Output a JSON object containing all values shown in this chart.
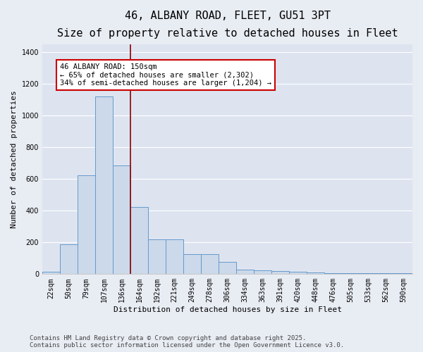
{
  "title1": "46, ALBANY ROAD, FLEET, GU51 3PT",
  "title2": "Size of property relative to detached houses in Fleet",
  "xlabel": "Distribution of detached houses by size in Fleet",
  "ylabel": "Number of detached properties",
  "categories": [
    "22sqm",
    "50sqm",
    "79sqm",
    "107sqm",
    "136sqm",
    "164sqm",
    "192sqm",
    "221sqm",
    "249sqm",
    "278sqm",
    "306sqm",
    "334sqm",
    "363sqm",
    "391sqm",
    "420sqm",
    "448sqm",
    "476sqm",
    "505sqm",
    "533sqm",
    "562sqm",
    "590sqm"
  ],
  "values": [
    15,
    190,
    625,
    1120,
    685,
    425,
    220,
    220,
    125,
    125,
    75,
    30,
    25,
    20,
    15,
    10,
    5,
    5,
    5,
    5,
    5
  ],
  "bar_color": "#ccd9ea",
  "bar_edge_color": "#6699cc",
  "background_color": "#dde4f0",
  "grid_color": "#ffffff",
  "fig_background": "#e8ecf3",
  "ylim": [
    0,
    1450
  ],
  "yticks": [
    0,
    200,
    400,
    600,
    800,
    1000,
    1200,
    1400
  ],
  "annotation_text": "46 ALBANY ROAD: 150sqm\n← 65% of detached houses are smaller (2,302)\n34% of semi-detached houses are larger (1,204) →",
  "vline_x": 4.5,
  "vline_color": "#8b0000",
  "footer_line1": "Contains HM Land Registry data © Crown copyright and database right 2025.",
  "footer_line2": "Contains public sector information licensed under the Open Government Licence v3.0.",
  "title_fontsize": 11,
  "subtitle_fontsize": 9.5,
  "axis_label_fontsize": 8,
  "tick_fontsize": 7,
  "annotation_fontsize": 7.5,
  "footer_fontsize": 6.5
}
